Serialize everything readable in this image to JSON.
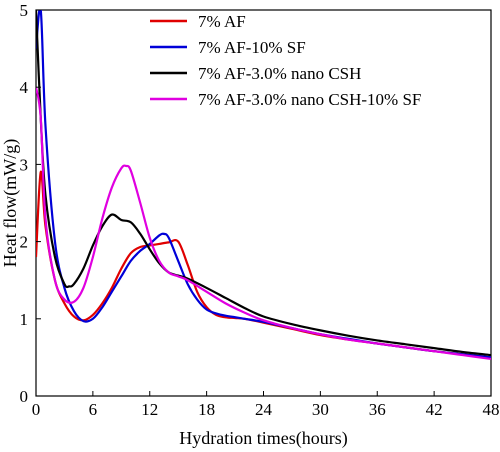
{
  "chart_data": {
    "type": "line",
    "xlabel": "Hydration times(hours)",
    "ylabel": "Heat flow(mW/g)",
    "xlim": [
      0,
      48
    ],
    "ylim": [
      0,
      5
    ],
    "xticks": [
      0,
      6,
      12,
      18,
      24,
      30,
      36,
      42,
      48
    ],
    "yticks": [
      0,
      1,
      2,
      3,
      4,
      5
    ],
    "grid": false,
    "legend_position": "top-right",
    "series": [
      {
        "name": "7% AF",
        "color": "#e00000",
        "x": [
          0,
          0.5,
          1,
          2,
          3,
          4,
          5,
          6,
          7,
          8,
          9,
          10,
          11,
          12,
          13,
          14,
          15,
          16,
          17,
          18,
          19,
          20,
          21,
          22,
          24,
          27,
          30,
          33,
          36,
          39,
          42,
          45,
          48
        ],
        "y": [
          1.8,
          2.9,
          2.2,
          1.5,
          1.2,
          1.03,
          0.98,
          1.05,
          1.2,
          1.4,
          1.65,
          1.85,
          1.93,
          1.95,
          1.97,
          1.99,
          2.0,
          1.7,
          1.35,
          1.15,
          1.05,
          1.02,
          1.01,
          1.0,
          0.95,
          0.87,
          0.79,
          0.73,
          0.68,
          0.63,
          0.58,
          0.54,
          0.5
        ]
      },
      {
        "name": "7% AF-10% SF",
        "color": "#0000d8",
        "x": [
          0,
          0.5,
          1,
          2,
          3,
          4,
          5,
          6,
          7,
          8,
          9,
          10,
          11,
          12,
          13,
          13.5,
          14,
          15,
          16,
          17,
          18,
          19,
          20,
          21,
          22,
          24,
          27,
          30,
          33,
          36,
          39,
          42,
          45,
          48
        ],
        "y": [
          4.5,
          5.0,
          3.5,
          2.0,
          1.4,
          1.1,
          0.97,
          1.0,
          1.15,
          1.35,
          1.55,
          1.75,
          1.88,
          1.97,
          2.08,
          2.1,
          2.05,
          1.75,
          1.45,
          1.25,
          1.12,
          1.07,
          1.04,
          1.02,
          1.0,
          0.96,
          0.88,
          0.8,
          0.74,
          0.68,
          0.63,
          0.58,
          0.54,
          0.5
        ]
      },
      {
        "name": "7% AF-3.0% nano CSH",
        "color": "#000000",
        "x": [
          0,
          0.5,
          1,
          2,
          3,
          3.5,
          4,
          5,
          6,
          7,
          8,
          9,
          10,
          11,
          12,
          13,
          14,
          15,
          16,
          18,
          20,
          22,
          24,
          27,
          30,
          33,
          36,
          39,
          42,
          45,
          48
        ],
        "y": [
          5.0,
          3.6,
          2.6,
          1.8,
          1.45,
          1.42,
          1.45,
          1.65,
          1.95,
          2.2,
          2.35,
          2.28,
          2.25,
          2.1,
          1.9,
          1.72,
          1.6,
          1.56,
          1.52,
          1.4,
          1.27,
          1.14,
          1.03,
          0.93,
          0.85,
          0.78,
          0.72,
          0.67,
          0.62,
          0.57,
          0.53
        ]
      },
      {
        "name": "7% AF-3.0% nano CSH-10% SF",
        "color": "#e000e0",
        "x": [
          0,
          0.5,
          1,
          2,
          3,
          4,
          5,
          6,
          7,
          8,
          9,
          9.5,
          10,
          11,
          12,
          13,
          14,
          15,
          16,
          18,
          20,
          22,
          24,
          27,
          30,
          33,
          36,
          39,
          42,
          45,
          48
        ],
        "y": [
          4.0,
          3.6,
          2.3,
          1.5,
          1.25,
          1.22,
          1.4,
          1.8,
          2.3,
          2.7,
          2.95,
          2.98,
          2.92,
          2.5,
          2.05,
          1.75,
          1.6,
          1.55,
          1.5,
          1.35,
          1.2,
          1.08,
          0.98,
          0.88,
          0.8,
          0.73,
          0.68,
          0.63,
          0.58,
          0.53,
          0.48
        ]
      }
    ]
  }
}
